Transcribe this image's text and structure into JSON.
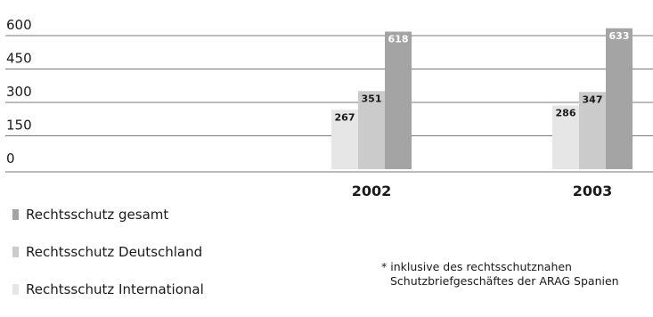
{
  "chart_data": {
    "type": "bar",
    "categories": [
      "2002",
      "2003"
    ],
    "series": [
      {
        "name": "Rechtsschutz International",
        "values": [
          267,
          286
        ],
        "color": "#e6e6e6"
      },
      {
        "name": "Rechtsschutz Deutschland",
        "values": [
          351,
          347
        ],
        "color": "#cbcbcb"
      },
      {
        "name": "Rechtsschutz gesamt",
        "values": [
          618,
          633
        ],
        "color": "#a4a4a4"
      }
    ],
    "data_labels": [
      [
        "267",
        "286"
      ],
      [
        "351",
        "347"
      ],
      [
        "618",
        "633"
      ]
    ],
    "yticks": [
      0,
      150,
      300,
      450,
      600
    ],
    "ytick_labels": [
      "0",
      "150",
      "300",
      "450",
      "600"
    ],
    "ylim": [
      0,
      600
    ],
    "grid": true,
    "legend_position": "bottom-left"
  },
  "legend": {
    "items": [
      {
        "label": "Rechtsschutz gesamt",
        "color": "#a4a4a4"
      },
      {
        "label": "Rechtsschutz Deutschland",
        "color": "#cbcbcb"
      },
      {
        "label": "Rechtsschutz International",
        "color": "#e6e6e6"
      }
    ]
  },
  "footnote": {
    "line1": "* inklusive des rechtsschutznahen",
    "line2": "Schutzbriefgeschäftes der ARAG Spanien"
  }
}
